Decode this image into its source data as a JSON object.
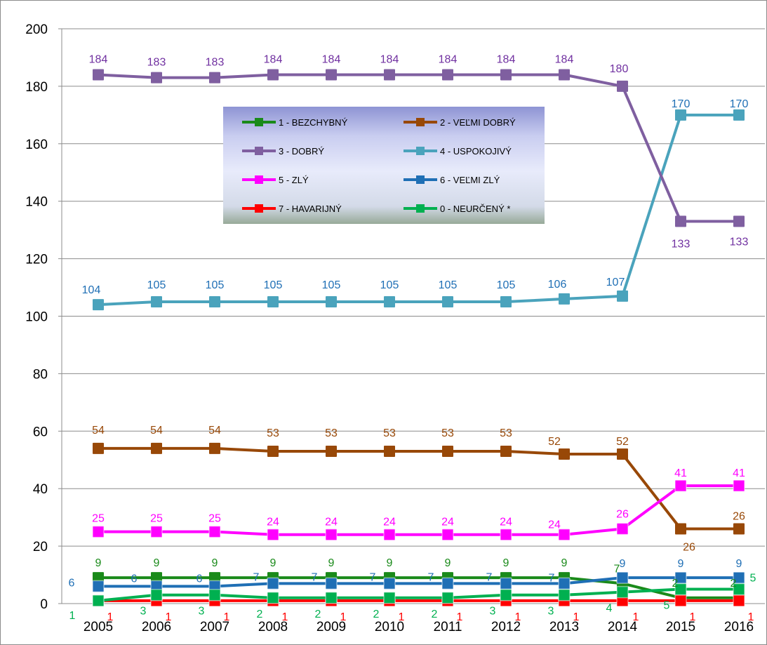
{
  "chart_data": {
    "type": "line",
    "title": "",
    "xlabel": "",
    "ylabel": "",
    "ylim": [
      0,
      200
    ],
    "yticks": [
      "0",
      "20",
      "40",
      "60",
      "80",
      "100",
      "120",
      "140",
      "160",
      "180",
      "200"
    ],
    "categories": [
      "2005",
      "2006",
      "2007",
      "2008",
      "2009",
      "2010",
      "2011",
      "2012",
      "2013",
      "2014",
      "2015",
      "2016"
    ],
    "grid": "horizontal",
    "legend_position": "upper-middle",
    "series": [
      {
        "name": "1 - BEZCHYBNÝ",
        "color": "#1a8a1a",
        "label_color": "#1a8a1a",
        "values": [
          9,
          9,
          9,
          9,
          9,
          9,
          9,
          9,
          9,
          7,
          2,
          2
        ]
      },
      {
        "name": "2 - VEĽMI DOBRÝ",
        "color": "#984807",
        "label_color": "#984807",
        "values": [
          54,
          54,
          54,
          53,
          53,
          53,
          53,
          53,
          52,
          52,
          26,
          26
        ]
      },
      {
        "name": "3 - DOBRÝ",
        "color": "#7f5fa0",
        "label_color": "#7030a0",
        "values": [
          184,
          183,
          183,
          184,
          184,
          184,
          184,
          184,
          184,
          180,
          133,
          133
        ]
      },
      {
        "name": "4 - USPOKOJIVÝ",
        "color": "#4aa3bc",
        "label_color": "#1f6fb5",
        "values": [
          104,
          105,
          105,
          105,
          105,
          105,
          105,
          105,
          106,
          107,
          170,
          170
        ]
      },
      {
        "name": "5 - ZLÝ",
        "color": "#ff00ff",
        "label_color": "#ff00ff",
        "values": [
          25,
          25,
          25,
          24,
          24,
          24,
          24,
          24,
          24,
          26,
          41,
          41
        ]
      },
      {
        "name": "6 - VEĽMI ZLÝ",
        "color": "#1f6fb5",
        "label_color": "#1f6fb5",
        "values": [
          6,
          6,
          6,
          7,
          7,
          7,
          7,
          7,
          7,
          9,
          9,
          9
        ]
      },
      {
        "name": "7 - HAVARIJNÝ",
        "color": "#ff0000",
        "label_color": "#ff0000",
        "values": [
          1,
          1,
          1,
          1,
          1,
          1,
          1,
          1,
          1,
          1,
          1,
          1
        ]
      },
      {
        "name": "0 - NEURČENÝ *",
        "color": "#00b050",
        "label_color": "#00b050",
        "values": [
          1,
          3,
          3,
          2,
          2,
          2,
          2,
          3,
          3,
          4,
          5,
          5
        ]
      }
    ]
  }
}
